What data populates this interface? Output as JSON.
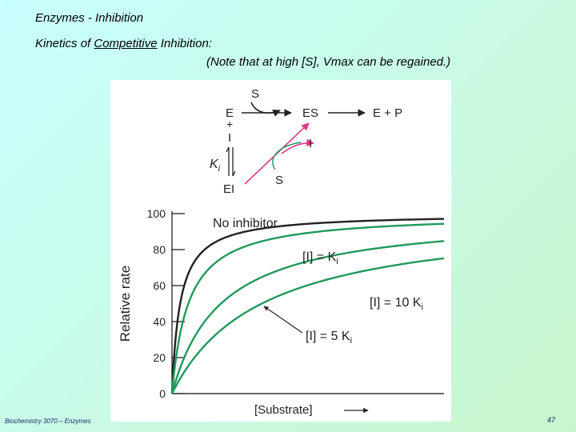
{
  "slide": {
    "title": "Enzymes - Inhibition",
    "subtitle_prefix": "Kinetics of ",
    "subtitle_emph": "Competitive",
    "subtitle_suffix": " Inhibition:",
    "note": "(Note that at high [S], Vmax can be regained.)",
    "footer": "Biochemistry 3070 – Enzymes",
    "page_number": "47"
  },
  "scheme": {
    "s_top": "S",
    "e": "E",
    "es": "ES",
    "ep": "E + P",
    "plus": "+",
    "i": "I",
    "ki_main": "K",
    "ki_sub": "i",
    "ei": "EI",
    "i_arrow": "I",
    "s_bottom": "S"
  },
  "colors": {
    "no_inhibitor": "#222222",
    "inhibited": "#1f9a5a",
    "axis": "#111111"
  },
  "chart_data": {
    "type": "line",
    "title": "",
    "xlabel": "[Substrate]",
    "ylabel": "Relative rate",
    "ylim": [
      0,
      100
    ],
    "yticks": [
      "0",
      "20",
      "40",
      "60",
      "80",
      "100"
    ],
    "series": [
      {
        "name": "No inhibitor",
        "label_main": "No inhibitor",
        "label_sub": "",
        "color": "#222222",
        "km": 0.3
      },
      {
        "name": "[I] = Ki",
        "label_main": "[I] = K",
        "label_sub": "i",
        "color": "#1f9a5a",
        "km": 0.6
      },
      {
        "name": "[I] = 5 Ki",
        "label_main": "[I] = 5 K",
        "label_sub": "i",
        "color": "#1f9a5a",
        "km": 1.8
      },
      {
        "name": "[I] = 10 Ki",
        "label_main": "[I] = 10 K",
        "label_sub": "i",
        "color": "#1f9a5a",
        "km": 3.3
      }
    ],
    "x_range": [
      0,
      10
    ],
    "vmax": 100
  }
}
